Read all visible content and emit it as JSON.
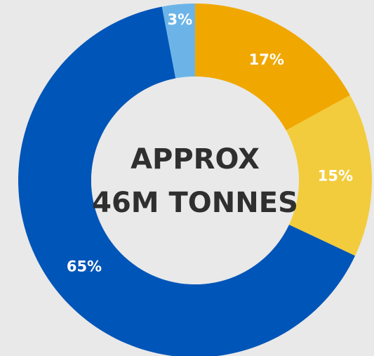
{
  "chart_data": {
    "type": "pie",
    "subtype": "donut",
    "center_label": [
      "APPROX",
      "46M TONNES"
    ],
    "slices": [
      {
        "label": "17%",
        "value": 17,
        "color": "#f0a800"
      },
      {
        "label": "15%",
        "value": 15,
        "color": "#f2cc3c"
      },
      {
        "label": "65%",
        "value": 65,
        "color": "#0055b8"
      },
      {
        "label": "3%",
        "value": 3,
        "color": "#6cb4e8"
      }
    ],
    "background": "#e9e9e9",
    "center_color": "#e9e9e9",
    "label_color": "#ffffff",
    "center_text_color": "#2f2f2f"
  }
}
